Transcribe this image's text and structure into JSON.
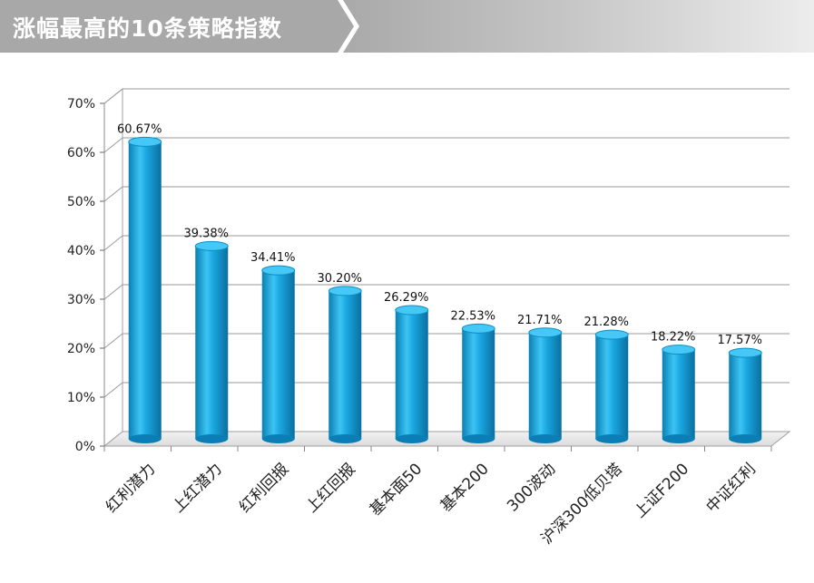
{
  "header": {
    "title": "涨幅最高的10条策略指数"
  },
  "chart_data": {
    "type": "bar",
    "categories": [
      "红利潜力",
      "上红潜力",
      "红利回报",
      "上红回报",
      "基本面50",
      "基本200",
      "300波动",
      "沪深300低贝塔",
      "上证F200",
      "中证红利"
    ],
    "values": [
      60.67,
      39.38,
      34.41,
      30.2,
      26.29,
      22.53,
      21.71,
      21.28,
      18.22,
      17.57
    ],
    "data_labels": [
      "60.67%",
      "39.38%",
      "34.41%",
      "30.20%",
      "26.29%",
      "22.53%",
      "21.71%",
      "21.28%",
      "18.22%",
      "17.57%"
    ],
    "y_ticks": [
      "0%",
      "10%",
      "20%",
      "30%",
      "40%",
      "50%",
      "60%",
      "70%"
    ],
    "ylim": [
      0,
      70
    ],
    "grid": true,
    "bar_color": "#1aa6e0"
  }
}
